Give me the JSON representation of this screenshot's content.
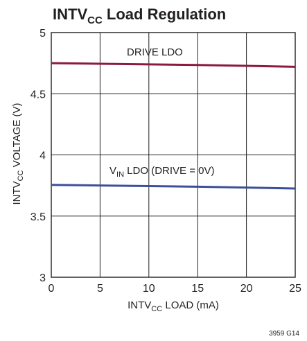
{
  "chart_data": {
    "type": "line",
    "title": {
      "main": "INTV",
      "sub": "CC",
      "rest": " Load Regulation"
    },
    "xlabel": {
      "main": "INTV",
      "sub": "CC",
      "rest": " LOAD (mA)"
    },
    "ylabel": {
      "main": "INTV",
      "sub": "CC",
      "rest": " VOLTAGE (V)"
    },
    "xlim": [
      0,
      25
    ],
    "ylim": [
      3,
      5
    ],
    "x_ticks": [
      0,
      5,
      10,
      15,
      20,
      25
    ],
    "x_tick_labels": [
      "0",
      "5",
      "10",
      "15",
      "20",
      "25"
    ],
    "y_ticks": [
      3,
      3.5,
      4,
      4.5,
      5
    ],
    "y_tick_labels": [
      "3",
      "3.5",
      "4",
      "4.5",
      "5"
    ],
    "grid": true,
    "series": [
      {
        "name": "DRIVE LDO",
        "label": {
          "main": "DRIVE LDO",
          "sub": "",
          "rest": ""
        },
        "color": "#8b1a3e",
        "x": [
          0,
          5,
          10,
          15,
          20,
          25
        ],
        "y": [
          4.75,
          4.745,
          4.74,
          4.735,
          4.728,
          4.72
        ]
      },
      {
        "name": "VIN LDO (DRIVE = 0V)",
        "label": {
          "main": "V",
          "sub": "IN",
          "rest": " LDO (DRIVE = 0V)"
        },
        "color": "#3c4f9a",
        "x": [
          0,
          5,
          10,
          15,
          20,
          25
        ],
        "y": [
          3.755,
          3.75,
          3.745,
          3.74,
          3.733,
          3.725
        ]
      }
    ],
    "figure_code": "3959 G14"
  }
}
